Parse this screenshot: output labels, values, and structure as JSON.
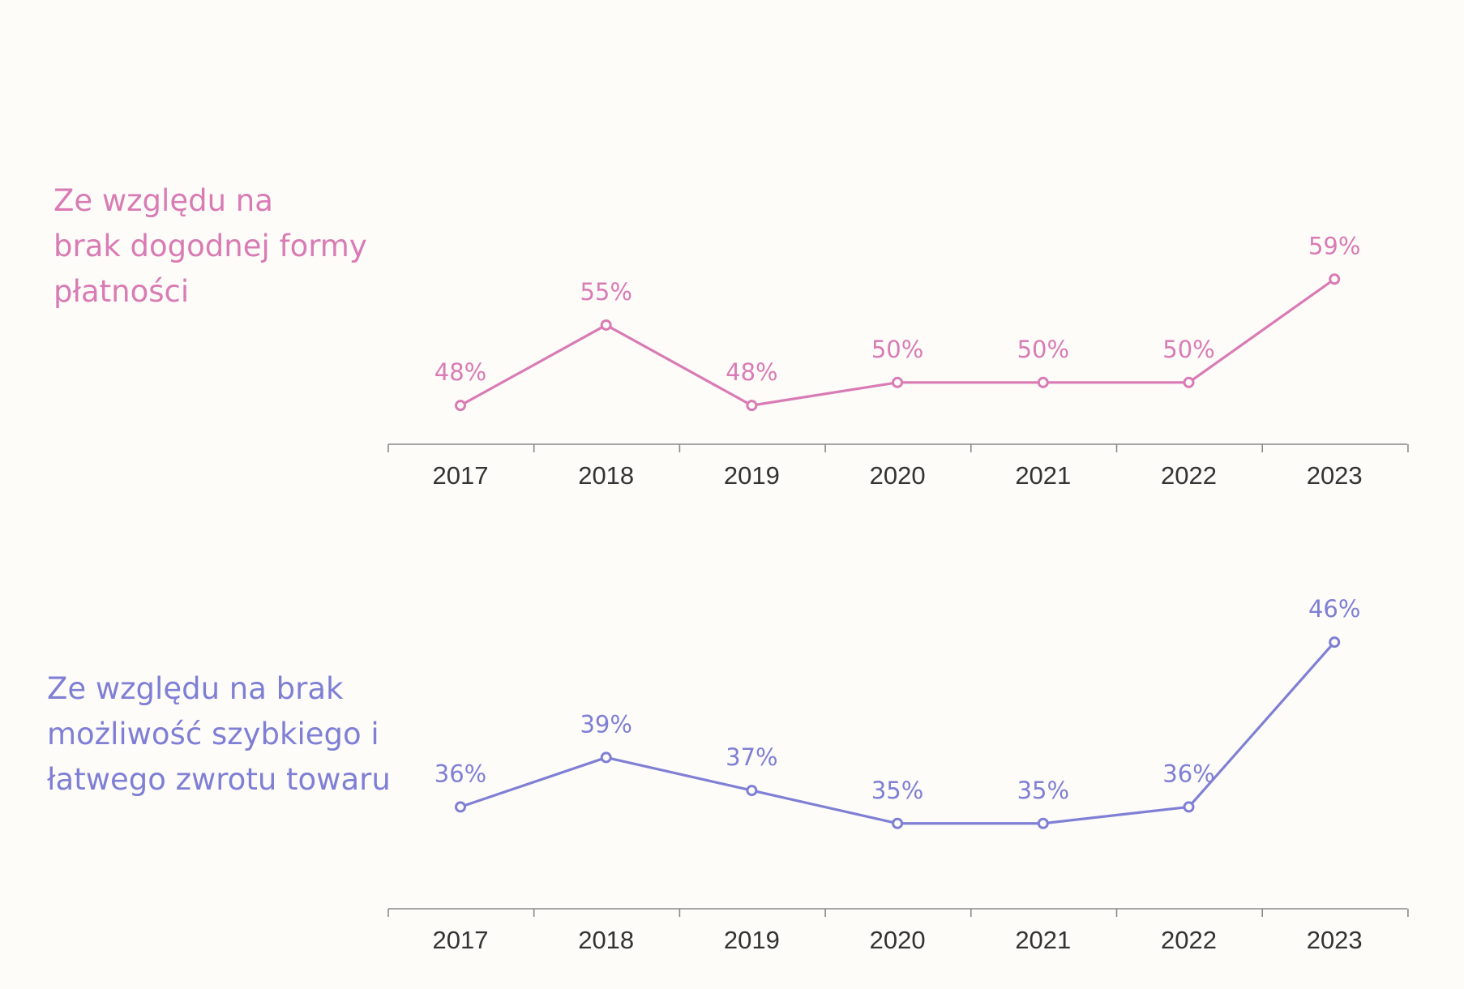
{
  "colors": {
    "background": "#fdfcf9",
    "axis": "#8a8a8a",
    "tick_text": "#333333"
  },
  "chart_data": [
    {
      "type": "line",
      "title": "Ze względu na\nbrak dogodnej formy\npłatności",
      "color": "#d97bb4",
      "categories": [
        "2017",
        "2018",
        "2019",
        "2020",
        "2021",
        "2022",
        "2023"
      ],
      "values": [
        48,
        55,
        48,
        50,
        50,
        50,
        59
      ],
      "data_labels": [
        "48%",
        "55%",
        "48%",
        "50%",
        "50%",
        "50%",
        "59%"
      ],
      "unit": "%",
      "grid": false,
      "legend": false
    },
    {
      "type": "line",
      "title": "Ze względu na brak\nmożliwość szybkiego i\nłatwego zwrotu towaru",
      "color": "#7f7fd5",
      "categories": [
        "2017",
        "2018",
        "2019",
        "2020",
        "2021",
        "2022",
        "2023"
      ],
      "values": [
        36,
        39,
        37,
        35,
        35,
        36,
        46
      ],
      "data_labels": [
        "36%",
        "39%",
        "37%",
        "35%",
        "35%",
        "36%",
        "46%"
      ],
      "unit": "%",
      "grid": false,
      "legend": false
    }
  ]
}
